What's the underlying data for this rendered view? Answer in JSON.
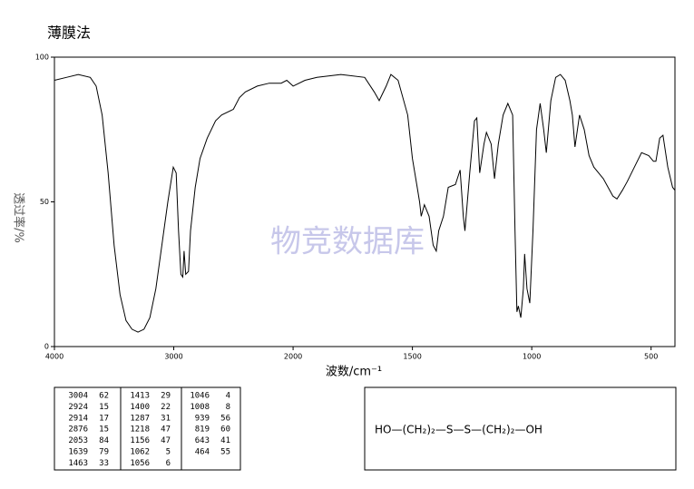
{
  "chart_data": {
    "type": "line",
    "title": "薄膜法",
    "xlabel": "波数/cm⁻¹",
    "ylabel": "透过率/%",
    "watermark": "物竞数据库",
    "xlim": [
      4000,
      400
    ],
    "xticks": [
      4000,
      3000,
      2000,
      1500,
      1000,
      500
    ],
    "ylim": [
      0,
      100
    ],
    "yticks": [
      0,
      50,
      100
    ],
    "series": [
      {
        "color": "#000000",
        "x": [
          4000,
          3900,
          3800,
          3700,
          3650,
          3600,
          3550,
          3500,
          3450,
          3400,
          3350,
          3300,
          3250,
          3200,
          3150,
          3100,
          3050,
          3004,
          2980,
          2960,
          2940,
          2924,
          2914,
          2900,
          2876,
          2860,
          2820,
          2780,
          2720,
          2650,
          2600,
          2500,
          2450,
          2400,
          2300,
          2200,
          2100,
          2053,
          2000,
          1950,
          1900,
          1800,
          1700,
          1660,
          1639,
          1610,
          1590,
          1560,
          1520,
          1500,
          1480,
          1470,
          1463,
          1450,
          1430,
          1413,
          1400,
          1390,
          1370,
          1350,
          1320,
          1300,
          1287,
          1280,
          1260,
          1240,
          1230,
          1218,
          1200,
          1190,
          1170,
          1156,
          1140,
          1120,
          1100,
          1080,
          1070,
          1062,
          1056,
          1046,
          1035,
          1030,
          1020,
          1008,
          995,
          980,
          965,
          950,
          939,
          920,
          900,
          880,
          860,
          840,
          830,
          819,
          800,
          780,
          760,
          740,
          720,
          700,
          680,
          660,
          643,
          620,
          600,
          570,
          540,
          510,
          490,
          480,
          464,
          450,
          430,
          410,
          400
        ],
        "values": [
          92,
          93,
          94,
          93,
          90,
          80,
          60,
          35,
          18,
          9,
          6,
          5,
          6,
          10,
          20,
          35,
          50,
          62,
          60,
          40,
          25,
          24,
          33,
          25,
          26,
          40,
          55,
          65,
          72,
          78,
          80,
          82,
          86,
          88,
          90,
          91,
          91,
          92,
          90,
          92,
          93,
          94,
          93,
          88,
          85,
          90,
          94,
          92,
          80,
          65,
          55,
          50,
          45,
          49,
          45,
          35,
          33,
          40,
          45,
          55,
          56,
          61,
          45,
          40,
          60,
          78,
          79,
          60,
          70,
          74,
          70,
          58,
          70,
          80,
          84,
          80,
          40,
          12,
          14,
          10,
          20,
          32,
          20,
          15,
          40,
          75,
          84,
          75,
          67,
          85,
          93,
          94,
          92,
          85,
          80,
          69,
          80,
          75,
          66,
          62,
          60,
          58,
          55,
          52,
          51,
          54,
          57,
          62,
          67,
          66,
          64,
          64,
          72,
          73,
          62,
          55,
          54
        ]
      }
    ]
  },
  "peak_table": {
    "rows": [
      [
        [
          3004,
          62
        ],
        [
          1413,
          29
        ],
        [
          1046,
          4
        ]
      ],
      [
        [
          2924,
          15
        ],
        [
          1400,
          22
        ],
        [
          1008,
          8
        ]
      ],
      [
        [
          2914,
          17
        ],
        [
          1287,
          31
        ],
        [
          939,
          56
        ]
      ],
      [
        [
          2876,
          15
        ],
        [
          1218,
          47
        ],
        [
          819,
          60
        ]
      ],
      [
        [
          2053,
          84
        ],
        [
          1156,
          47
        ],
        [
          643,
          41
        ]
      ],
      [
        [
          1639,
          79
        ],
        [
          1062,
          5
        ],
        [
          464,
          55
        ]
      ],
      [
        [
          1463,
          33
        ],
        [
          1056,
          6
        ]
      ]
    ]
  },
  "formula": "HO—(CH₂)₂—S—S—(CH₂)₂—OH"
}
